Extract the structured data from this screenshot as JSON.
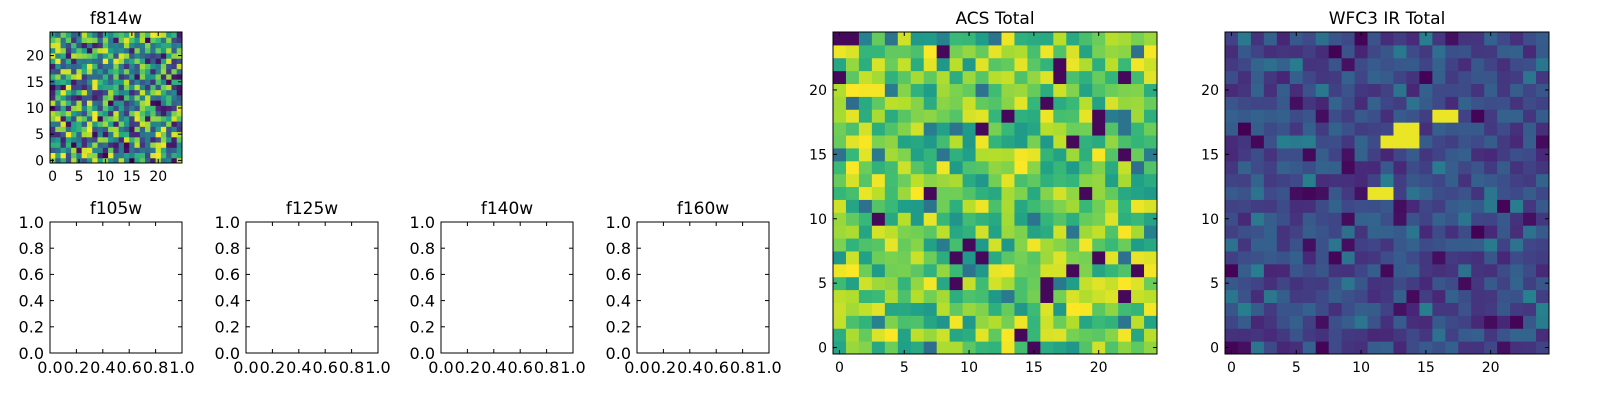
{
  "chart_data": [
    {
      "type": "heatmap",
      "title": "f814w",
      "xlim": [
        -0.5,
        24.5
      ],
      "ylim": [
        -0.5,
        24.5
      ],
      "xticks": [
        0,
        5,
        10,
        15,
        20
      ],
      "yticks": [
        0,
        5,
        10,
        15,
        20
      ],
      "grid_size": [
        25,
        25
      ],
      "colormap": "viridis",
      "pattern": "uniform-noise"
    },
    {
      "type": "table",
      "title": "f105w",
      "xlim": [
        0.0,
        1.0
      ],
      "ylim": [
        0.0,
        1.0
      ],
      "xticks": [
        "0.0",
        "0.2",
        "0.4",
        "0.6",
        "0.8",
        "1.0"
      ],
      "yticks": [
        "0.0",
        "0.2",
        "0.4",
        "0.6",
        "0.8",
        "1.0"
      ],
      "empty": true
    },
    {
      "type": "table",
      "title": "f125w",
      "xlim": [
        0.0,
        1.0
      ],
      "ylim": [
        0.0,
        1.0
      ],
      "xticks": [
        "0.0",
        "0.2",
        "0.4",
        "0.6",
        "0.8",
        "1.0"
      ],
      "yticks": [
        "0.0",
        "0.2",
        "0.4",
        "0.6",
        "0.8",
        "1.0"
      ],
      "empty": true
    },
    {
      "type": "table",
      "title": "f140w",
      "xlim": [
        0.0,
        1.0
      ],
      "ylim": [
        0.0,
        1.0
      ],
      "xticks": [
        "0.0",
        "0.2",
        "0.4",
        "0.6",
        "0.8",
        "1.0"
      ],
      "yticks": [
        "0.0",
        "0.2",
        "0.4",
        "0.6",
        "0.8",
        "1.0"
      ],
      "empty": true
    },
    {
      "type": "table",
      "title": "f160w",
      "xlim": [
        0.0,
        1.0
      ],
      "ylim": [
        0.0,
        1.0
      ],
      "xticks": [
        "0.0",
        "0.2",
        "0.4",
        "0.6",
        "0.8",
        "1.0"
      ],
      "yticks": [
        "0.0",
        "0.2",
        "0.4",
        "0.6",
        "0.8",
        "1.0"
      ],
      "empty": true
    },
    {
      "type": "heatmap",
      "title": "ACS Total",
      "xlim": [
        -0.5,
        24.5
      ],
      "ylim": [
        -0.5,
        24.5
      ],
      "xticks": [
        0,
        5,
        10,
        15,
        20
      ],
      "yticks": [
        0,
        5,
        10,
        15,
        20
      ],
      "grid_size": [
        25,
        25
      ],
      "colormap": "viridis",
      "pattern": "green-yellow-noise"
    },
    {
      "type": "heatmap",
      "title": "WFC3 IR Total",
      "xlim": [
        -0.5,
        24.5
      ],
      "ylim": [
        -0.5,
        24.5
      ],
      "xticks": [
        0,
        5,
        10,
        15,
        20
      ],
      "yticks": [
        0,
        5,
        10,
        15,
        20
      ],
      "grid_size": [
        25,
        25
      ],
      "colormap": "viridis",
      "pattern": "dark-noise-with-bright-sources",
      "bright_cells": [
        [
          11,
          12
        ],
        [
          12,
          12
        ],
        [
          12,
          16
        ],
        [
          13,
          16
        ],
        [
          13,
          17
        ],
        [
          14,
          16
        ],
        [
          14,
          17
        ],
        [
          16,
          18
        ],
        [
          17,
          18
        ]
      ]
    }
  ],
  "colors": {
    "viridis_dark": "#440154",
    "viridis_blue": "#3b528b",
    "viridis_teal": "#21918c",
    "viridis_green": "#5ec962",
    "viridis_yellow": "#fde725"
  }
}
